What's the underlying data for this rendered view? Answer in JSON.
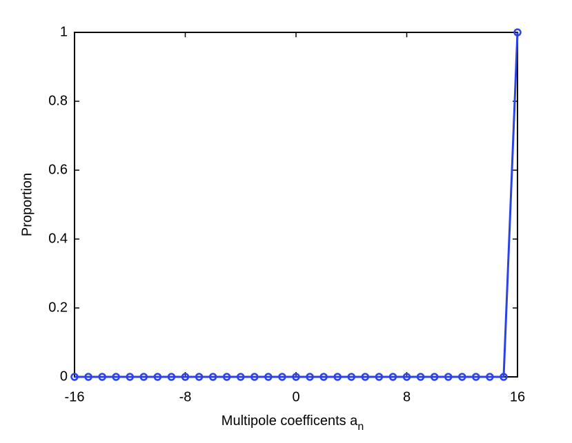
{
  "chart_data": {
    "type": "line",
    "xlabel": "Multipole coefficents a",
    "xlabel_subscript": "n",
    "ylabel": "Proportion",
    "x": [
      -16,
      -15,
      -14,
      -13,
      -12,
      -11,
      -10,
      -9,
      -8,
      -7,
      -6,
      -5,
      -4,
      -3,
      -2,
      -1,
      0,
      1,
      2,
      3,
      4,
      5,
      6,
      7,
      8,
      9,
      10,
      11,
      12,
      13,
      14,
      15,
      16
    ],
    "series": [
      {
        "color": "#2a42e6",
        "marker": "circle",
        "values": [
          0,
          0,
          0,
          0,
          0,
          0,
          0,
          0,
          0,
          0,
          0,
          0,
          0,
          0,
          0,
          0,
          0,
          0,
          0,
          0,
          0,
          0,
          0,
          0,
          0,
          0,
          0,
          0,
          0,
          0,
          0,
          0,
          1
        ]
      }
    ],
    "xlim": [
      -16,
      16
    ],
    "xticks": [
      -16,
      -8,
      0,
      8,
      16
    ],
    "ylim": [
      0,
      1
    ],
    "yticks": [
      0,
      0.2,
      0.4,
      0.6,
      0.8,
      1
    ],
    "grid": false,
    "box": true
  }
}
